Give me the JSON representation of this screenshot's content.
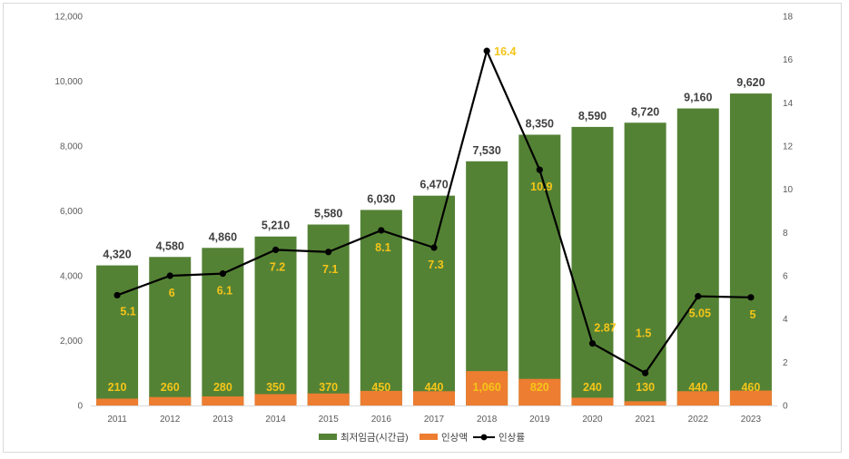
{
  "chart_data": {
    "type": "bar",
    "categories": [
      "2011",
      "2012",
      "2013",
      "2014",
      "2015",
      "2016",
      "2017",
      "2018",
      "2019",
      "2020",
      "2021",
      "2022",
      "2023"
    ],
    "series": [
      {
        "name": "최저임금(시간급)",
        "type": "bar",
        "axis": "left",
        "color": "#548235",
        "values": [
          4320,
          4580,
          4860,
          5210,
          5580,
          6030,
          6470,
          7530,
          8350,
          8590,
          8720,
          9160,
          9620
        ],
        "labels": [
          "4,320",
          "4,580",
          "4,860",
          "5,210",
          "5,580",
          "6,030",
          "6,470",
          "7,530",
          "8,350",
          "8,590",
          "8,720",
          "9,160",
          "9,620"
        ]
      },
      {
        "name": "인상액",
        "type": "bar",
        "axis": "left",
        "color": "#ed7d31",
        "values": [
          210,
          260,
          280,
          350,
          370,
          450,
          440,
          1060,
          820,
          240,
          130,
          440,
          460
        ],
        "labels": [
          "210",
          "260",
          "280",
          "350",
          "370",
          "450",
          "440",
          "1,060",
          "820",
          "240",
          "130",
          "440",
          "460"
        ]
      },
      {
        "name": "인상률",
        "type": "line",
        "axis": "right",
        "color": "#000000",
        "values": [
          5.1,
          6,
          6.1,
          7.2,
          7.1,
          8.1,
          7.3,
          16.4,
          10.9,
          2.87,
          1.5,
          5.05,
          5
        ],
        "labels": [
          "5.1",
          "6",
          "6.1",
          "7.2",
          "7.1",
          "8.1",
          "7.3",
          "16.4",
          "10.9",
          "2.87",
          "1.5",
          "5.05",
          "5"
        ]
      }
    ],
    "left_axis": {
      "ylim": [
        0,
        12000
      ],
      "ticks": [
        "0",
        "2,000",
        "4,000",
        "6,000",
        "8,000",
        "10,000",
        "12,000"
      ]
    },
    "right_axis": {
      "ylim": [
        0,
        18
      ],
      "ticks": [
        "0",
        "2",
        "4",
        "6",
        "8",
        "10",
        "12",
        "14",
        "16",
        "18"
      ]
    },
    "grid": false,
    "legend": "bottom",
    "label_color": "#f5c518"
  }
}
